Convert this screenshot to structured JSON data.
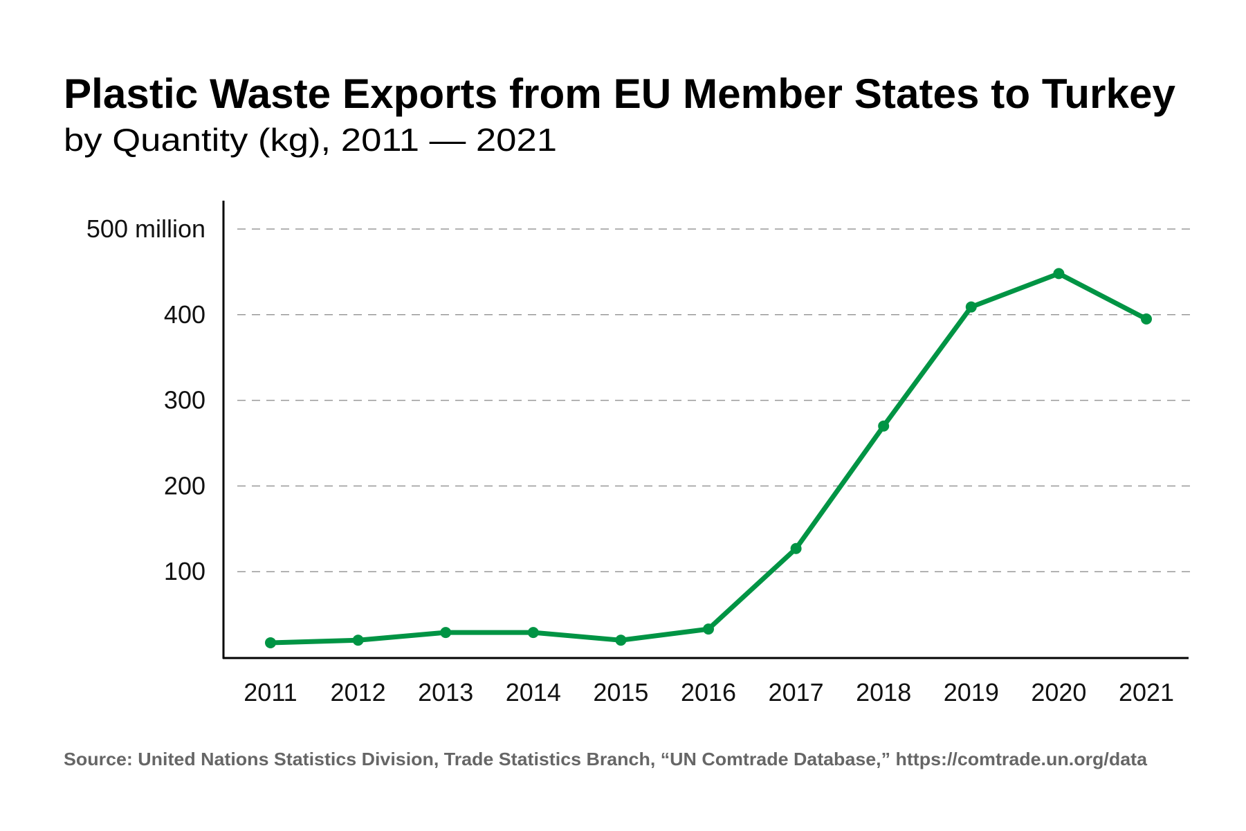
{
  "chart_data": {
    "type": "line",
    "title": "Plastic Waste Exports from EU Member States to Turkey",
    "subtitle": "by Quantity (kg), 2011 — 2021",
    "xlabel": "",
    "ylabel": "",
    "categories": [
      "2011",
      "2012",
      "2013",
      "2014",
      "2015",
      "2016",
      "2017",
      "2018",
      "2019",
      "2020",
      "2021"
    ],
    "values": [
      17,
      20,
      29,
      29,
      20,
      33,
      127,
      270,
      409,
      448,
      395
    ],
    "value_unit": "million kg",
    "ylim": [
      0,
      500
    ],
    "yticks": [
      100,
      200,
      300,
      400,
      500
    ],
    "ytick_labels": [
      "100",
      "200",
      "300",
      "400",
      "500 million"
    ],
    "grid": "horizontal dashed",
    "legend": "none",
    "color": "#009444",
    "source": "Source: United Nations Statistics Division, Trade Statistics Branch, “UN Comtrade Database,” https://comtrade.un.org/data"
  }
}
